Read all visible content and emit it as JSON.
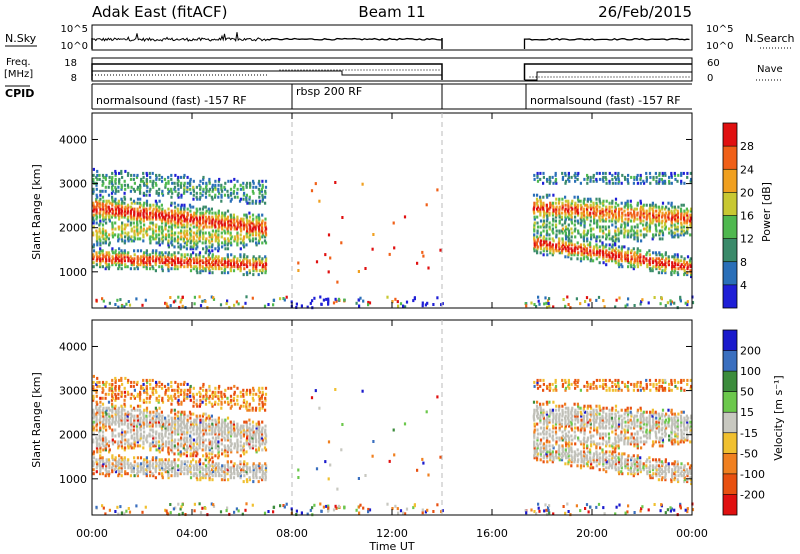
{
  "header": {
    "station": "Adak East (fitACF)",
    "beam": "Beam 11",
    "date": "26/Feb/2015"
  },
  "labels": {
    "nsky": "N.Sky",
    "nsearch": "N.Search",
    "freq": "Freq.",
    "freq_unit": "[MHz]",
    "nave": "Nave",
    "cpid": "CPID",
    "time_axis": "Time UT",
    "slant_range": "Slant Range [km]",
    "power_label": "Power [dB]",
    "velocity_label": "Velocity [m s⁻¹]"
  },
  "noise_panel": {
    "left_ticks": [
      "10^5",
      "10^0"
    ],
    "right_ticks": [
      "10^5",
      "10^0"
    ]
  },
  "freq_panel": {
    "left_ticks": [
      "18",
      "8"
    ],
    "right_ticks": [
      "60",
      "0"
    ]
  },
  "cpid_segments": [
    {
      "label": "normalsound (fast) -157 RF",
      "start_h": 0,
      "end_h": 8
    },
    {
      "label": "rbsp 200 RF",
      "start_h": 8,
      "end_h": 14
    },
    {
      "label": "normalsound (fast) -157 RF",
      "start_h": 17.3,
      "end_h": 24
    }
  ],
  "chart_data": [
    {
      "type": "heatmap",
      "name": "power",
      "xlabel": "Time UT",
      "ylabel": "Slant Range [km]",
      "x_ticks": [
        "00:00",
        "04:00",
        "08:00",
        "12:00",
        "16:00",
        "20:00",
        "00:00"
      ],
      "x_tick_hours": [
        0,
        4,
        8,
        12,
        16,
        20,
        24
      ],
      "xlim": [
        0,
        24
      ],
      "y_ticks": [
        1000,
        2000,
        3000,
        4000
      ],
      "ylim": [
        180,
        4600
      ],
      "colorbar": {
        "label": "Power [dB]",
        "ticks": [
          4,
          8,
          12,
          16,
          20,
          24,
          28
        ],
        "range": [
          0,
          32
        ],
        "colors": [
          "#1f1fd6",
          "#2a6fb8",
          "#3a8a6a",
          "#4fb84f",
          "#c8c832",
          "#f0a020",
          "#f06018",
          "#e01010"
        ]
      },
      "data_gap_hours": [
        14.0,
        17.3
      ],
      "vertical_markers_h": [
        8,
        14
      ]
    },
    {
      "type": "heatmap",
      "name": "velocity",
      "xlabel": "Time UT",
      "ylabel": "Slant Range [km]",
      "x_ticks": [
        "00:00",
        "04:00",
        "08:00",
        "12:00",
        "16:00",
        "20:00",
        "00:00"
      ],
      "x_tick_hours": [
        0,
        4,
        8,
        12,
        16,
        20,
        24
      ],
      "xlim": [
        0,
        24
      ],
      "y_ticks": [
        1000,
        2000,
        3000,
        4000
      ],
      "ylim": [
        180,
        4600
      ],
      "colorbar": {
        "label": "Velocity [m s⁻¹]",
        "ticks": [
          200,
          100,
          50,
          15,
          -15,
          -50,
          -100,
          -200
        ],
        "colors": [
          "#1a1acc",
          "#3a6fbf",
          "#3c8c3c",
          "#6cc84c",
          "#c8c8c0",
          "#f0c030",
          "#f08020",
          "#e85010",
          "#e01010"
        ]
      },
      "ground_scatter_color": "#c0c0b8",
      "data_gap_hours": [
        14.0,
        17.3
      ],
      "vertical_markers_h": [
        8,
        14
      ]
    }
  ]
}
